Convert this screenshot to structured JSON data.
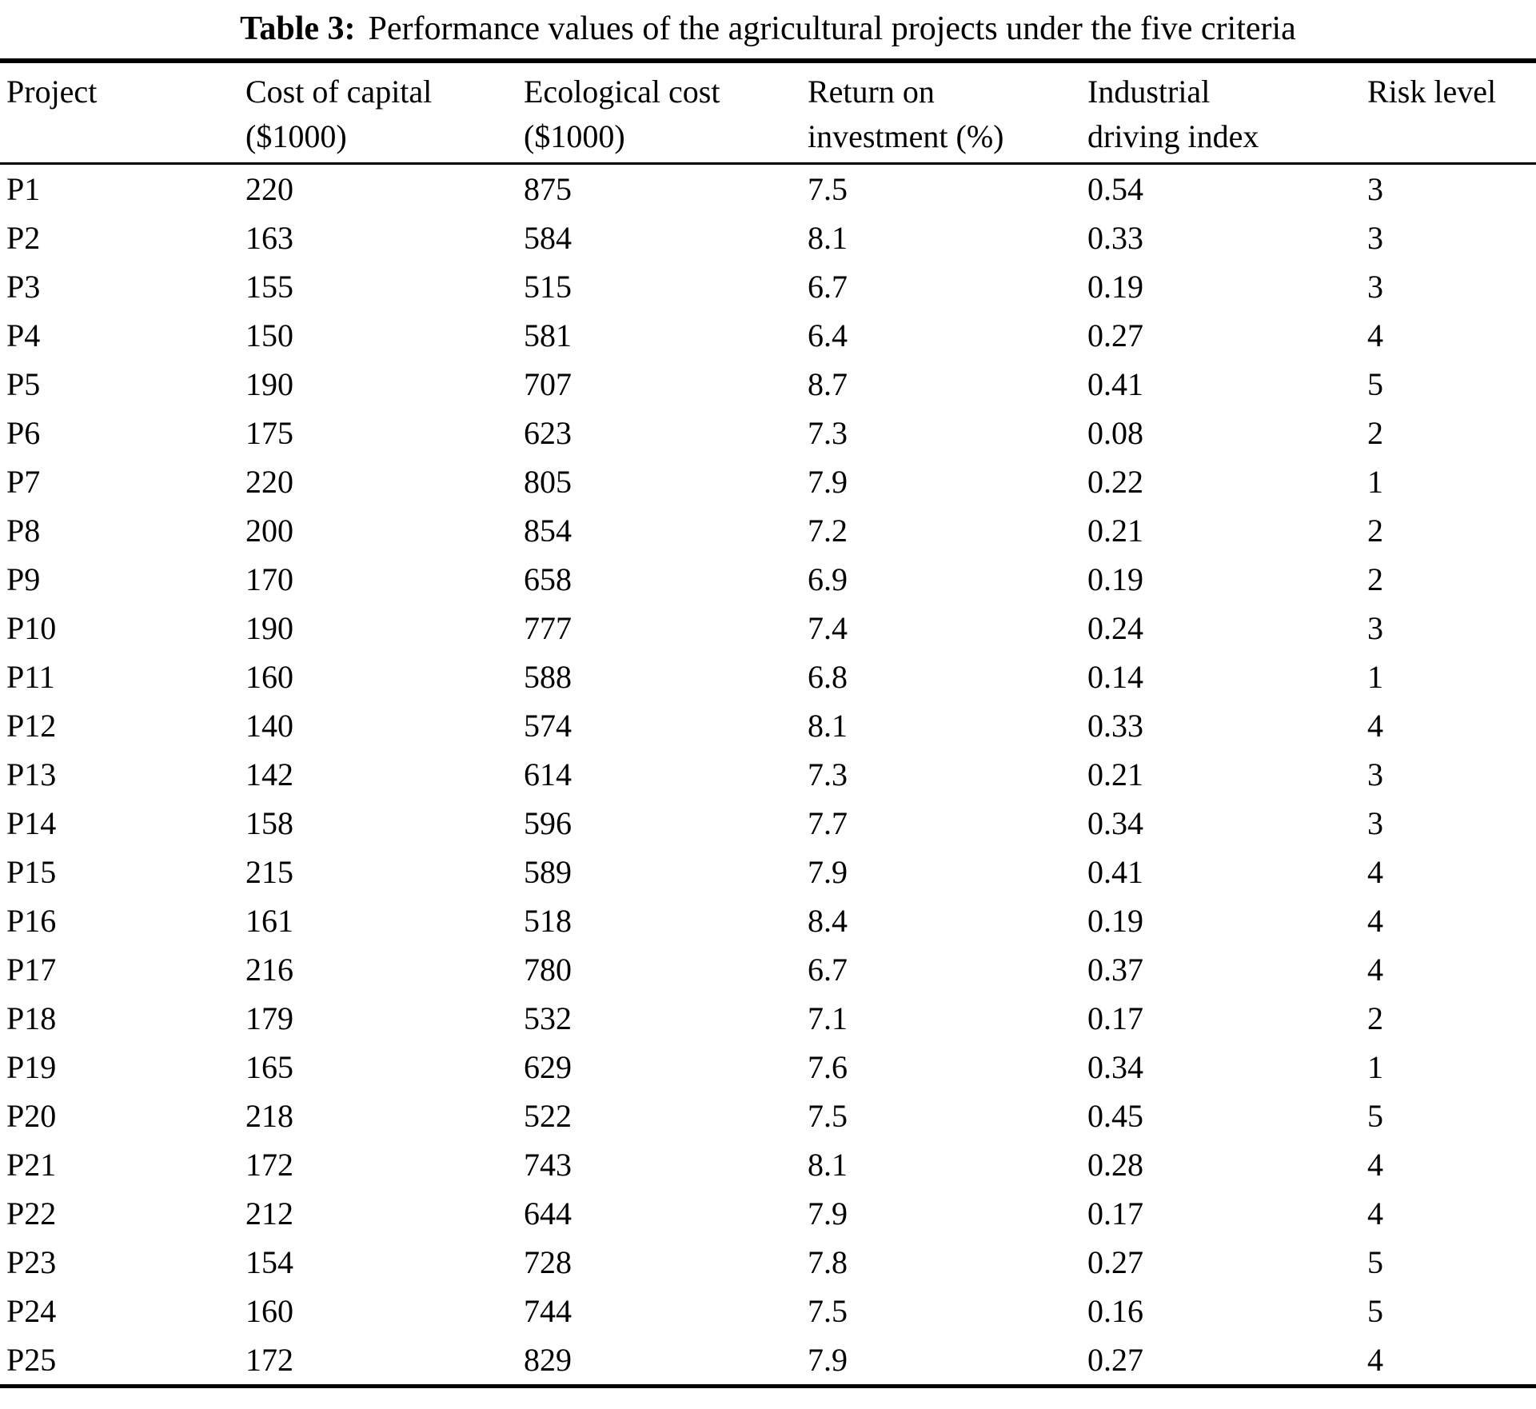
{
  "title": {
    "label": "Table 3:",
    "text": "Performance values of the agricultural projects under the five criteria"
  },
  "table": {
    "headers": [
      [
        "Project",
        ""
      ],
      [
        "Cost of capital",
        "($1000)"
      ],
      [
        "Ecological cost",
        "($1000)"
      ],
      [
        "Return on",
        "investment (%)"
      ],
      [
        "Industrial",
        "driving index"
      ],
      [
        "Risk level",
        ""
      ]
    ],
    "rows": [
      [
        "P1",
        "220",
        "875",
        "7.5",
        "0.54",
        "3"
      ],
      [
        "P2",
        "163",
        "584",
        "8.1",
        "0.33",
        "3"
      ],
      [
        "P3",
        "155",
        "515",
        "6.7",
        "0.19",
        "3"
      ],
      [
        "P4",
        "150",
        "581",
        "6.4",
        "0.27",
        "4"
      ],
      [
        "P5",
        "190",
        "707",
        "8.7",
        "0.41",
        "5"
      ],
      [
        "P6",
        "175",
        "623",
        "7.3",
        "0.08",
        "2"
      ],
      [
        "P7",
        "220",
        "805",
        "7.9",
        "0.22",
        "1"
      ],
      [
        "P8",
        "200",
        "854",
        "7.2",
        "0.21",
        "2"
      ],
      [
        "P9",
        "170",
        "658",
        "6.9",
        "0.19",
        "2"
      ],
      [
        "P10",
        "190",
        "777",
        "7.4",
        "0.24",
        "3"
      ],
      [
        "P11",
        "160",
        "588",
        "6.8",
        "0.14",
        "1"
      ],
      [
        "P12",
        "140",
        "574",
        "8.1",
        "0.33",
        "4"
      ],
      [
        "P13",
        "142",
        "614",
        "7.3",
        "0.21",
        "3"
      ],
      [
        "P14",
        "158",
        "596",
        "7.7",
        "0.34",
        "3"
      ],
      [
        "P15",
        "215",
        "589",
        "7.9",
        "0.41",
        "4"
      ],
      [
        "P16",
        "161",
        "518",
        "8.4",
        "0.19",
        "4"
      ],
      [
        "P17",
        "216",
        "780",
        "6.7",
        "0.37",
        "4"
      ],
      [
        "P18",
        "179",
        "532",
        "7.1",
        "0.17",
        "2"
      ],
      [
        "P19",
        "165",
        "629",
        "7.6",
        "0.34",
        "1"
      ],
      [
        "P20",
        "218",
        "522",
        "7.5",
        "0.45",
        "5"
      ],
      [
        "P21",
        "172",
        "743",
        "8.1",
        "0.28",
        "4"
      ],
      [
        "P22",
        "212",
        "644",
        "7.9",
        "0.17",
        "4"
      ],
      [
        "P23",
        "154",
        "728",
        "7.8",
        "0.27",
        "5"
      ],
      [
        "P24",
        "160",
        "744",
        "7.5",
        "0.16",
        "5"
      ],
      [
        "P25",
        "172",
        "829",
        "7.9",
        "0.27",
        "4"
      ]
    ]
  },
  "chart_data": {
    "type": "table",
    "title": "Table 3: Performance values of the agricultural projects under the five criteria",
    "columns": [
      "Project",
      "Cost of capital ($1000)",
      "Ecological cost ($1000)",
      "Return on investment (%)",
      "Industrial driving index",
      "Risk level"
    ],
    "rows": [
      [
        "P1",
        220,
        875,
        7.5,
        0.54,
        3
      ],
      [
        "P2",
        163,
        584,
        8.1,
        0.33,
        3
      ],
      [
        "P3",
        155,
        515,
        6.7,
        0.19,
        3
      ],
      [
        "P4",
        150,
        581,
        6.4,
        0.27,
        4
      ],
      [
        "P5",
        190,
        707,
        8.7,
        0.41,
        5
      ],
      [
        "P6",
        175,
        623,
        7.3,
        0.08,
        2
      ],
      [
        "P7",
        220,
        805,
        7.9,
        0.22,
        1
      ],
      [
        "P8",
        200,
        854,
        7.2,
        0.21,
        2
      ],
      [
        "P9",
        170,
        658,
        6.9,
        0.19,
        2
      ],
      [
        "P10",
        190,
        777,
        7.4,
        0.24,
        3
      ],
      [
        "P11",
        160,
        588,
        6.8,
        0.14,
        1
      ],
      [
        "P12",
        140,
        574,
        8.1,
        0.33,
        4
      ],
      [
        "P13",
        142,
        614,
        7.3,
        0.21,
        3
      ],
      [
        "P14",
        158,
        596,
        7.7,
        0.34,
        3
      ],
      [
        "P15",
        215,
        589,
        7.9,
        0.41,
        4
      ],
      [
        "P16",
        161,
        518,
        8.4,
        0.19,
        4
      ],
      [
        "P17",
        216,
        780,
        6.7,
        0.37,
        4
      ],
      [
        "P18",
        179,
        532,
        7.1,
        0.17,
        2
      ],
      [
        "P19",
        165,
        629,
        7.6,
        0.34,
        1
      ],
      [
        "P20",
        218,
        522,
        7.5,
        0.45,
        5
      ],
      [
        "P21",
        172,
        743,
        8.1,
        0.28,
        4
      ],
      [
        "P22",
        212,
        644,
        7.9,
        0.17,
        4
      ],
      [
        "P23",
        154,
        728,
        7.8,
        0.27,
        5
      ],
      [
        "P24",
        160,
        744,
        7.5,
        0.16,
        5
      ],
      [
        "P25",
        172,
        829,
        7.9,
        0.27,
        4
      ]
    ]
  }
}
